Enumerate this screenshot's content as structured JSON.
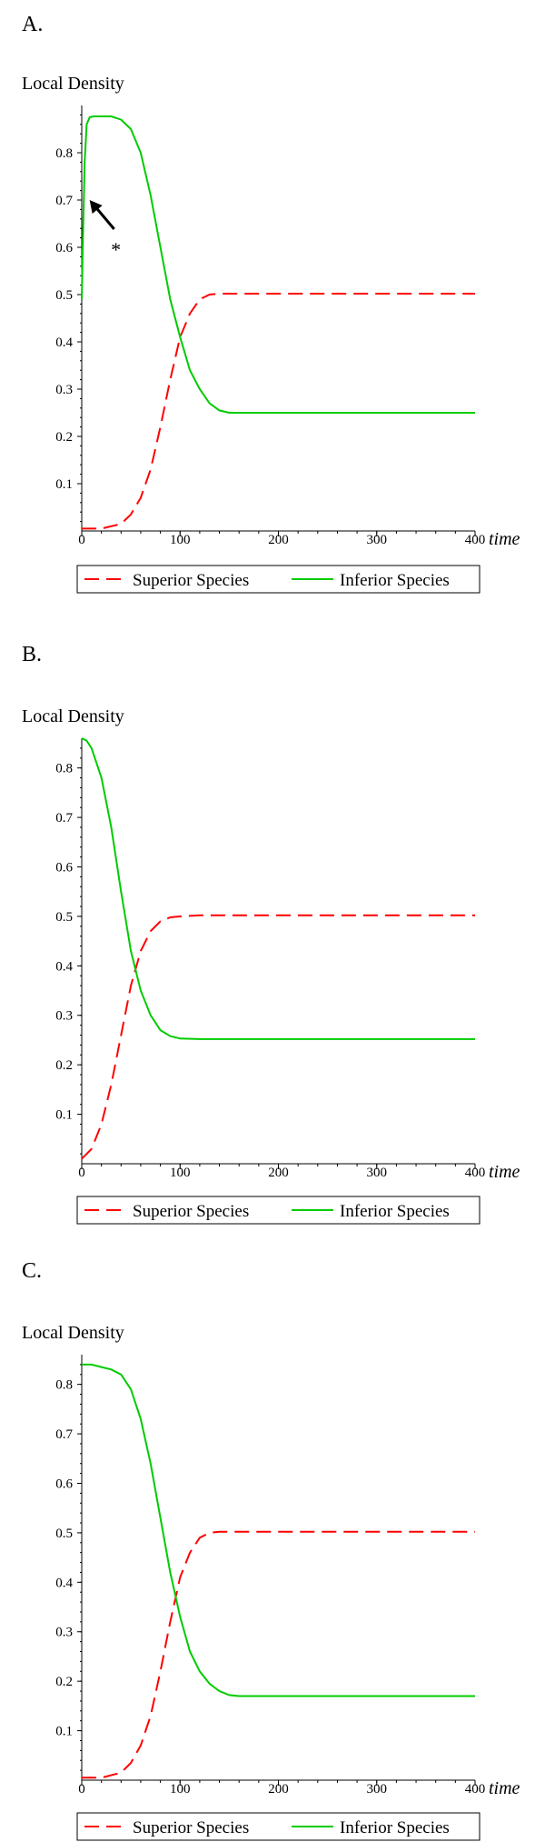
{
  "chart_data": [
    {
      "panel_label": "A.",
      "type": "line",
      "ylabel": "Local Density",
      "xlabel": "time",
      "xlim": [
        0,
        400
      ],
      "ylim": [
        0,
        0.9
      ],
      "xticks": [
        0,
        100,
        200,
        300,
        400
      ],
      "yticks": [
        0.1,
        0.2,
        0.3,
        0.4,
        0.5,
        0.6,
        0.7,
        0.8
      ],
      "grid": false,
      "legend_position": "bottom",
      "annotation": "*",
      "annotation_target": [
        8,
        0.7
      ],
      "series": [
        {
          "name": "Superior Species",
          "color": "#ff0000",
          "dash": "dashed",
          "x": [
            0,
            20,
            40,
            50,
            60,
            70,
            80,
            90,
            100,
            110,
            120,
            130,
            140,
            150,
            200,
            300,
            400
          ],
          "y": [
            0.005,
            0.005,
            0.015,
            0.035,
            0.07,
            0.13,
            0.22,
            0.32,
            0.41,
            0.46,
            0.49,
            0.5,
            0.502,
            0.502,
            0.502,
            0.502,
            0.502
          ]
        },
        {
          "name": "Inferior Species",
          "color": "#00cc00",
          "dash": "solid",
          "x": [
            0,
            1,
            3,
            5,
            8,
            12,
            20,
            30,
            40,
            50,
            60,
            70,
            80,
            90,
            100,
            110,
            120,
            130,
            140,
            150,
            200,
            300,
            400
          ],
          "y": [
            0.49,
            0.6,
            0.78,
            0.86,
            0.875,
            0.877,
            0.877,
            0.877,
            0.87,
            0.85,
            0.8,
            0.71,
            0.6,
            0.49,
            0.41,
            0.34,
            0.3,
            0.27,
            0.255,
            0.25,
            0.25,
            0.25,
            0.25
          ]
        }
      ]
    },
    {
      "panel_label": "B.",
      "type": "line",
      "ylabel": "Local Density",
      "xlabel": "time",
      "xlim": [
        0,
        400
      ],
      "ylim": [
        0,
        0.86
      ],
      "xticks": [
        0,
        100,
        200,
        300,
        400
      ],
      "yticks": [
        0.1,
        0.2,
        0.3,
        0.4,
        0.5,
        0.6,
        0.7,
        0.8
      ],
      "grid": false,
      "legend_position": "bottom",
      "series": [
        {
          "name": "Superior Species",
          "color": "#ff0000",
          "dash": "dashed",
          "x": [
            0,
            10,
            20,
            30,
            40,
            50,
            60,
            70,
            80,
            90,
            100,
            120,
            150,
            200,
            300,
            400
          ],
          "y": [
            0.01,
            0.03,
            0.08,
            0.16,
            0.26,
            0.36,
            0.43,
            0.47,
            0.49,
            0.498,
            0.5,
            0.502,
            0.502,
            0.502,
            0.502,
            0.502
          ]
        },
        {
          "name": "Inferior Species",
          "color": "#00cc00",
          "dash": "solid",
          "x": [
            0,
            5,
            10,
            20,
            30,
            40,
            50,
            60,
            70,
            80,
            90,
            100,
            120,
            150,
            200,
            300,
            400
          ],
          "y": [
            0.86,
            0.855,
            0.84,
            0.78,
            0.68,
            0.55,
            0.43,
            0.35,
            0.3,
            0.27,
            0.258,
            0.253,
            0.252,
            0.252,
            0.252,
            0.252,
            0.252
          ]
        }
      ]
    },
    {
      "panel_label": "C.",
      "type": "line",
      "ylabel": "Local Density",
      "xlabel": "time",
      "xlim": [
        0,
        400
      ],
      "ylim": [
        0,
        0.86
      ],
      "xticks": [
        0,
        100,
        200,
        300,
        400
      ],
      "yticks": [
        0.1,
        0.2,
        0.3,
        0.4,
        0.5,
        0.6,
        0.7,
        0.8
      ],
      "grid": false,
      "legend_position": "bottom",
      "series": [
        {
          "name": "Superior Species",
          "color": "#ff0000",
          "dash": "dashed",
          "x": [
            0,
            20,
            40,
            50,
            60,
            70,
            80,
            90,
            100,
            110,
            120,
            130,
            140,
            150,
            200,
            300,
            400
          ],
          "y": [
            0.005,
            0.005,
            0.015,
            0.035,
            0.07,
            0.13,
            0.22,
            0.32,
            0.41,
            0.46,
            0.49,
            0.5,
            0.502,
            0.502,
            0.502,
            0.502,
            0.502
          ]
        },
        {
          "name": "Inferior Species",
          "color": "#00cc00",
          "dash": "solid",
          "x": [
            0,
            10,
            20,
            30,
            40,
            50,
            60,
            70,
            80,
            90,
            100,
            110,
            120,
            130,
            140,
            150,
            160,
            200,
            300,
            400
          ],
          "y": [
            0.84,
            0.84,
            0.835,
            0.83,
            0.82,
            0.79,
            0.73,
            0.64,
            0.53,
            0.42,
            0.33,
            0.26,
            0.22,
            0.195,
            0.18,
            0.172,
            0.17,
            0.17,
            0.17,
            0.17
          ]
        }
      ]
    }
  ]
}
